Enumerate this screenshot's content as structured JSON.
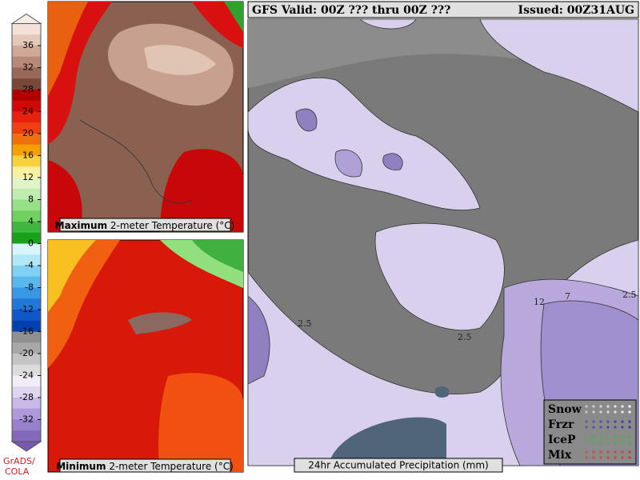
{
  "header": {
    "valid": "GFS Valid: 00Z ??? thru 00Z ???",
    "issued": "Issued: 00Z31AUG"
  },
  "colorbar": {
    "ticks": [
      36,
      32,
      28,
      24,
      20,
      16,
      12,
      8,
      4,
      0,
      -4,
      -8,
      -12,
      -16,
      -20,
      -24,
      -28,
      -32
    ]
  },
  "panels": [
    {
      "label_bold": "Maximum",
      "label_rest": "2-meter Temperature (°C)"
    },
    {
      "label_bold": "Minimum",
      "label_rest": "2-meter Temperature (°C)"
    },
    {
      "label": "24hr Accumulated Precipitation (mm)"
    }
  ],
  "contour_labels": [
    "2.5",
    "2.5",
    "12",
    "7",
    "2.5"
  ],
  "legend": [
    "Snow",
    "Frzr",
    "IceP",
    "Mix"
  ],
  "credit": [
    "GrADS/",
    "COLA"
  ]
}
